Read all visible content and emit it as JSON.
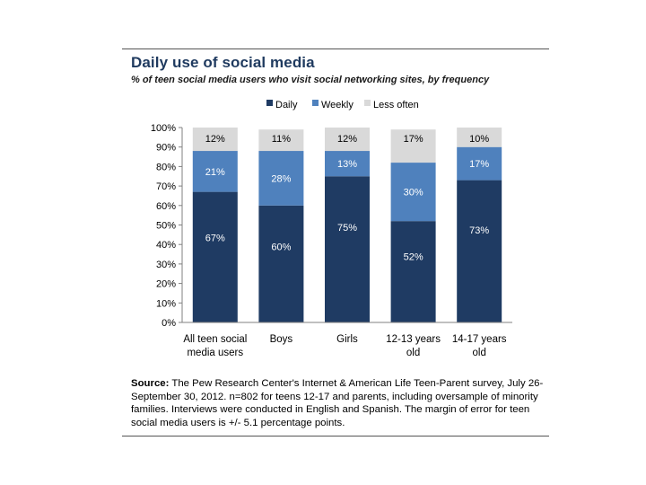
{
  "title": "Daily use of social media",
  "subtitle": "% of teen social media users who visit social networking sites, by frequency",
  "source": {
    "label": "Source:",
    "text": " The Pew Research Center's Internet & American Life Teen-Parent survey, July 26-September 30, 2012. n=802 for teens 12-17 and parents, including oversample of minority families. Interviews were conducted in English and Spanish. The margin of error for teen social media users is +/- 5.1 percentage points."
  },
  "colors": {
    "daily": "#1f3b63",
    "weekly": "#4f81bd",
    "less_often": "#d9d9d9"
  },
  "chart_data": {
    "type": "bar",
    "stacked": true,
    "categories": [
      [
        "All teen social",
        "media users"
      ],
      [
        "Boys"
      ],
      [
        "Girls"
      ],
      [
        "12-13 years",
        "old"
      ],
      [
        "14-17 years",
        "old"
      ]
    ],
    "series": [
      {
        "name": "Daily",
        "values": [
          67,
          60,
          75,
          52,
          73
        ],
        "labels": [
          "67%",
          "60%",
          "75%",
          "52%",
          "73%"
        ]
      },
      {
        "name": "Weekly",
        "values": [
          21,
          28,
          13,
          30,
          17
        ],
        "labels": [
          "21%",
          "28%",
          "13%",
          "30%",
          "17%"
        ]
      },
      {
        "name": "Less often",
        "values": [
          12,
          11,
          12,
          17,
          10
        ],
        "labels": [
          "12%",
          "11%",
          "12%",
          "17%",
          "10%"
        ]
      }
    ],
    "ylim": [
      0,
      100
    ],
    "yticks": [
      "0%",
      "10%",
      "20%",
      "30%",
      "40%",
      "50%",
      "60%",
      "70%",
      "80%",
      "90%",
      "100%"
    ],
    "legend_position": "top",
    "grid": false
  }
}
